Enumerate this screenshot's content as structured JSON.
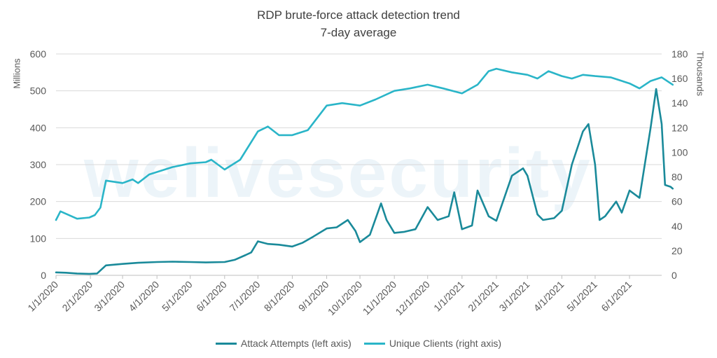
{
  "watermark": "welivesecurity",
  "chart_data": {
    "type": "line",
    "title": "RDP brute-force attack detection trend",
    "subtitle": "7-day average",
    "ylabel_left": "Millions",
    "ylabel_right": "Thousands",
    "ylim_left": [
      0,
      600
    ],
    "ylim_right": [
      0,
      180
    ],
    "yticks_left": [
      0,
      100,
      200,
      300,
      400,
      500,
      600
    ],
    "yticks_right": [
      0,
      20,
      40,
      60,
      80,
      100,
      120,
      140,
      160,
      180
    ],
    "xlim": [
      "1/1/2020",
      "6/30/2021"
    ],
    "xticks": [
      "1/1/2020",
      "2/1/2020",
      "3/1/2020",
      "4/1/2020",
      "5/1/2020",
      "6/1/2020",
      "7/1/2020",
      "8/1/2020",
      "9/1/2020",
      "10/1/2020",
      "11/1/2020",
      "12/1/2020",
      "1/1/2021",
      "2/1/2021",
      "3/1/2021",
      "4/1/2021",
      "5/1/2021",
      "6/1/2021"
    ],
    "grid": true,
    "legend_position": "bottom",
    "series": [
      {
        "name": "Attack Attempts (left axis)",
        "axis": "left",
        "color": "#1a8a9a",
        "points": [
          [
            "1/1/2020",
            8
          ],
          [
            "1/10/2020",
            7
          ],
          [
            "1/20/2020",
            5
          ],
          [
            "1/31/2020",
            4
          ],
          [
            "2/7/2020",
            5
          ],
          [
            "2/15/2020",
            27
          ],
          [
            "3/1/2020",
            31
          ],
          [
            "3/15/2020",
            34
          ],
          [
            "4/1/2020",
            36
          ],
          [
            "4/15/2020",
            37
          ],
          [
            "5/1/2020",
            36
          ],
          [
            "5/15/2020",
            35
          ],
          [
            "6/1/2020",
            36
          ],
          [
            "6/10/2020",
            42
          ],
          [
            "6/20/2020",
            55
          ],
          [
            "6/25/2020",
            62
          ],
          [
            "7/1/2020",
            92
          ],
          [
            "7/10/2020",
            85
          ],
          [
            "7/20/2020",
            83
          ],
          [
            "8/1/2020",
            78
          ],
          [
            "8/10/2020",
            88
          ],
          [
            "8/20/2020",
            105
          ],
          [
            "9/1/2020",
            127
          ],
          [
            "9/10/2020",
            130
          ],
          [
            "9/20/2020",
            150
          ],
          [
            "9/27/2020",
            120
          ],
          [
            "10/1/2020",
            90
          ],
          [
            "10/10/2020",
            110
          ],
          [
            "10/20/2020",
            195
          ],
          [
            "10/25/2020",
            150
          ],
          [
            "11/1/2020",
            115
          ],
          [
            "11/10/2020",
            118
          ],
          [
            "11/20/2020",
            125
          ],
          [
            "12/1/2020",
            185
          ],
          [
            "12/10/2020",
            150
          ],
          [
            "12/20/2020",
            160
          ],
          [
            "12/25/2020",
            225
          ],
          [
            "1/1/2021",
            125
          ],
          [
            "1/10/2021",
            135
          ],
          [
            "1/15/2021",
            230
          ],
          [
            "1/25/2021",
            160
          ],
          [
            "2/1/2021",
            148
          ],
          [
            "2/15/2021",
            270
          ],
          [
            "2/25/2021",
            290
          ],
          [
            "3/1/2021",
            270
          ],
          [
            "3/10/2021",
            165
          ],
          [
            "3/15/2021",
            150
          ],
          [
            "3/25/2021",
            155
          ],
          [
            "4/1/2021",
            175
          ],
          [
            "4/10/2021",
            300
          ],
          [
            "4/20/2021",
            390
          ],
          [
            "4/25/2021",
            410
          ],
          [
            "5/1/2021",
            300
          ],
          [
            "5/5/2021",
            150
          ],
          [
            "5/10/2021",
            160
          ],
          [
            "5/20/2021",
            200
          ],
          [
            "5/25/2021",
            170
          ],
          [
            "6/1/2021",
            230
          ],
          [
            "6/10/2021",
            210
          ],
          [
            "6/20/2021",
            400
          ],
          [
            "6/25/2021",
            505
          ],
          [
            "6/30/2021",
            410
          ],
          [
            "7/3/2021",
            245
          ],
          [
            "7/8/2021",
            240
          ],
          [
            "7/10/2021",
            235
          ]
        ]
      },
      {
        "name": "Unique Clients (right axis)",
        "axis": "right",
        "color": "#2ab5c8",
        "points": [
          [
            "1/1/2020",
            45
          ],
          [
            "1/5/2020",
            52
          ],
          [
            "1/10/2020",
            50
          ],
          [
            "1/20/2020",
            46
          ],
          [
            "1/31/2020",
            47
          ],
          [
            "2/5/2020",
            49
          ],
          [
            "2/10/2020",
            55
          ],
          [
            "2/15/2020",
            77
          ],
          [
            "3/1/2020",
            75
          ],
          [
            "3/10/2020",
            78
          ],
          [
            "3/15/2020",
            75
          ],
          [
            "3/25/2020",
            82
          ],
          [
            "4/1/2020",
            84
          ],
          [
            "4/15/2020",
            88
          ],
          [
            "5/1/2020",
            91
          ],
          [
            "5/15/2020",
            92
          ],
          [
            "5/20/2020",
            94
          ],
          [
            "6/1/2020",
            86
          ],
          [
            "6/15/2020",
            94
          ],
          [
            "7/1/2020",
            117
          ],
          [
            "7/10/2020",
            121
          ],
          [
            "7/20/2020",
            114
          ],
          [
            "8/1/2020",
            114
          ],
          [
            "8/15/2020",
            118
          ],
          [
            "9/1/2020",
            138
          ],
          [
            "9/15/2020",
            140
          ],
          [
            "10/1/2020",
            138
          ],
          [
            "10/15/2020",
            143
          ],
          [
            "11/1/2020",
            150
          ],
          [
            "11/15/2020",
            152
          ],
          [
            "12/1/2020",
            155
          ],
          [
            "12/15/2020",
            152
          ],
          [
            "1/1/2021",
            148
          ],
          [
            "1/15/2021",
            155
          ],
          [
            "1/25/2021",
            166
          ],
          [
            "2/1/2021",
            168
          ],
          [
            "2/15/2021",
            165
          ],
          [
            "3/1/2021",
            163
          ],
          [
            "3/10/2021",
            160
          ],
          [
            "3/20/2021",
            166
          ],
          [
            "4/1/2021",
            162
          ],
          [
            "4/10/2021",
            160
          ],
          [
            "4/20/2021",
            163
          ],
          [
            "5/1/2021",
            162
          ],
          [
            "5/15/2021",
            161
          ],
          [
            "6/1/2021",
            156
          ],
          [
            "6/10/2021",
            152
          ],
          [
            "6/20/2021",
            158
          ],
          [
            "6/30/2021",
            161
          ],
          [
            "7/10/2021",
            155
          ]
        ]
      }
    ]
  }
}
